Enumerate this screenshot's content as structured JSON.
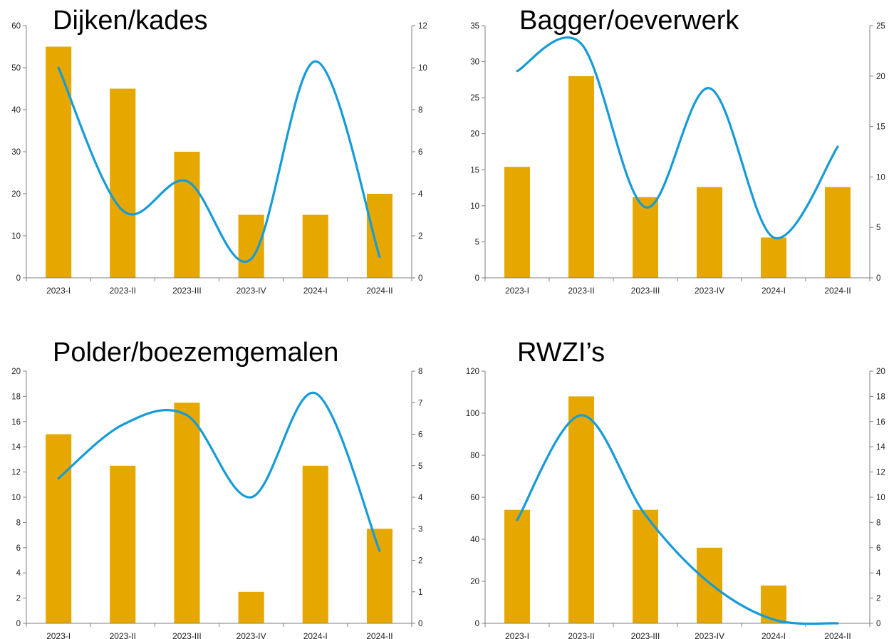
{
  "colors": {
    "bar": "#E6A800",
    "line": "#159BD7",
    "axis": "#7f7f7f"
  },
  "chart_data": [
    {
      "type": "bar",
      "title": "Dijken/kades",
      "categories": [
        "2023-I",
        "2023-II",
        "2023-III",
        "2023-IV",
        "2024-I",
        "2024-II"
      ],
      "series": [
        {
          "type": "bar",
          "axis": "left",
          "values": [
            55,
            45,
            30,
            15,
            15,
            20
          ]
        },
        {
          "type": "line",
          "axis": "right",
          "smooth": true,
          "values": [
            10,
            3.2,
            4.6,
            0.9,
            10.3,
            1
          ]
        }
      ],
      "ylim": [
        0,
        60
      ],
      "yticks": [
        0,
        10,
        20,
        30,
        40,
        50,
        60
      ],
      "y2lim": [
        0,
        12
      ],
      "y2ticks": [
        0,
        2,
        4,
        6,
        8,
        10,
        12
      ],
      "grid": false,
      "legend": "none"
    },
    {
      "type": "bar",
      "title": "Bagger/oeverwerk",
      "categories": [
        "2023-I",
        "2023-II",
        "2023-III",
        "2023-IV",
        "2024-I",
        "2024-II"
      ],
      "series": [
        {
          "type": "bar",
          "axis": "left",
          "values": [
            15.4,
            28,
            11.2,
            12.6,
            5.6,
            12.6
          ]
        },
        {
          "type": "line",
          "axis": "right",
          "smooth": true,
          "values": [
            20.5,
            23.2,
            7,
            18.8,
            4,
            13
          ]
        }
      ],
      "ylim": [
        0,
        35
      ],
      "yticks": [
        0,
        5,
        10,
        15,
        20,
        25,
        30,
        35
      ],
      "y2lim": [
        0,
        25
      ],
      "y2ticks": [
        0,
        5,
        10,
        15,
        20,
        25
      ],
      "grid": false,
      "legend": "none"
    },
    {
      "type": "bar",
      "title": "Polder/boezemgemalen",
      "categories": [
        "2023-I",
        "2023-II",
        "2023-III",
        "2023-IV",
        "2024-I",
        "2024-II"
      ],
      "series": [
        {
          "type": "bar",
          "axis": "left",
          "values": [
            15,
            12.5,
            17.5,
            2.5,
            12.5,
            7.5
          ]
        },
        {
          "type": "line",
          "axis": "right",
          "smooth": true,
          "values": [
            4.6,
            6.3,
            6.6,
            4,
            7.3,
            2.3
          ]
        }
      ],
      "ylim": [
        0,
        20
      ],
      "yticks": [
        0,
        2,
        4,
        6,
        8,
        10,
        12,
        14,
        16,
        18,
        20
      ],
      "y2lim": [
        0,
        8
      ],
      "y2ticks": [
        0,
        1,
        2,
        3,
        4,
        5,
        6,
        7,
        8
      ],
      "grid": false,
      "legend": "none"
    },
    {
      "type": "bar",
      "title": "RWZI’s",
      "categories": [
        "2023-I",
        "2023-II",
        "2023-III",
        "2023-IV",
        "2024-I",
        "2024-II"
      ],
      "series": [
        {
          "type": "bar",
          "axis": "left",
          "values": [
            54,
            108,
            54,
            36,
            18,
            0
          ]
        },
        {
          "type": "line",
          "axis": "right",
          "smooth": true,
          "values": [
            8.2,
            16.5,
            8.6,
            3.2,
            0.3,
            0
          ]
        }
      ],
      "ylim": [
        0,
        120
      ],
      "yticks": [
        0,
        20,
        40,
        60,
        80,
        100,
        120
      ],
      "y2lim": [
        0,
        20
      ],
      "y2ticks": [
        0,
        2,
        4,
        6,
        8,
        10,
        12,
        14,
        16,
        18,
        20
      ],
      "grid": false,
      "legend": "none"
    }
  ]
}
